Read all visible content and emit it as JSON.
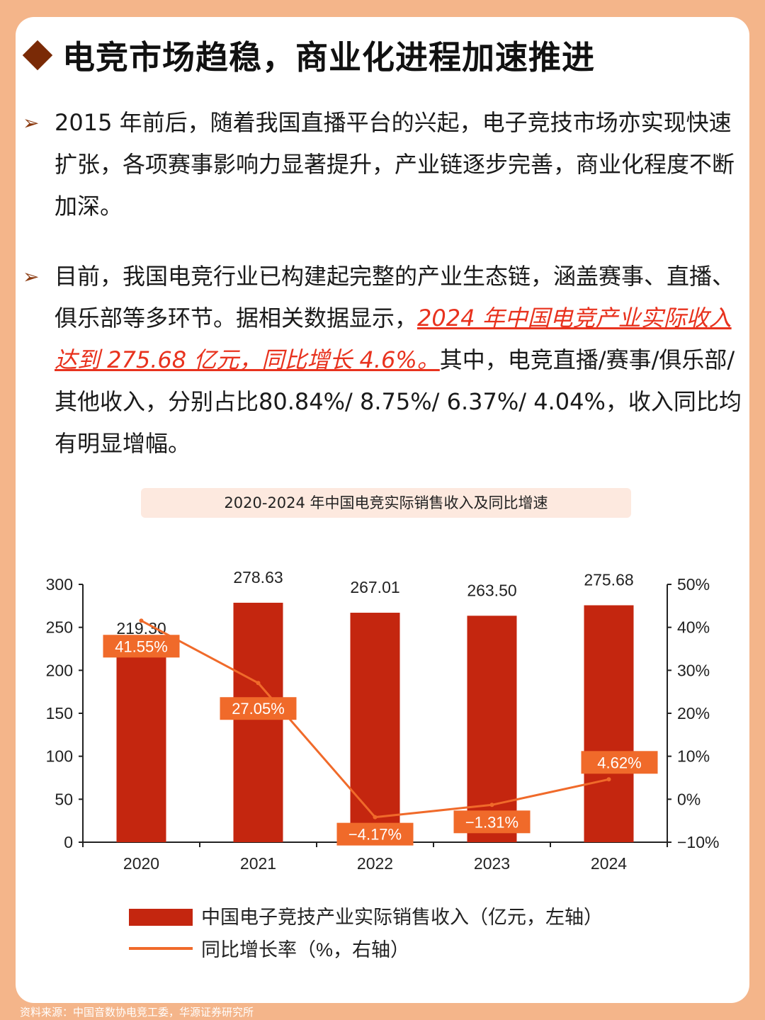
{
  "title": "电竞市场趋稳，商业化进程加速推进",
  "para1": "2015 年前后，随着我国直播平台的兴起，电子竞技市场亦实现快速扩张，各项赛事影响力显著提升，产业链逐步完善，商业化程度不断加深。",
  "para2": {
    "before": "目前，我国电竞行业已构建起完整的产业生态链，涵盖赛事、直播、俱乐部等多环节。据相关数据显示，",
    "highlight": "2024 年中国电竞产业实际收入达到 275.68 亿元，同比增长 4.6%。",
    "after": "其中，电竞直播/赛事/俱乐部/其他收入，分别占比80.84%/ 8.75%/ 6.37%/ 4.04%，收入同比均有明显增幅。"
  },
  "arrow_glyph": "➢",
  "chart_data": {
    "type": "bar",
    "title": "2020-2024 年中国电竞实际销售收入及同比增速",
    "categories": [
      "2020",
      "2021",
      "2022",
      "2023",
      "2024"
    ],
    "series": [
      {
        "name": "中国电子竞技产业实际销售收入（亿元，左轴）",
        "type": "bar",
        "axis": "left",
        "values": [
          219.3,
          278.63,
          267.01,
          263.5,
          275.68
        ],
        "labels": [
          "219.30",
          "278.63",
          "267.01",
          "263.50",
          "275.68"
        ]
      },
      {
        "name": "同比增长率（%，右轴）",
        "type": "line",
        "axis": "right",
        "values": [
          41.55,
          27.05,
          -4.17,
          -1.31,
          4.62
        ],
        "labels": [
          "41.55%",
          "27.05%",
          "−4.17%",
          "−1.31%",
          "4.62%"
        ]
      }
    ],
    "yleft": {
      "ylim": [
        0,
        300
      ],
      "ticks": [
        "0",
        "50",
        "100",
        "150",
        "200",
        "250",
        "300"
      ]
    },
    "yright": {
      "ylim": [
        -10,
        50
      ],
      "ticks": [
        "−10%",
        "0%",
        "10%",
        "20%",
        "30%",
        "40%",
        "50%"
      ]
    },
    "legend_position": "bottom",
    "colors": {
      "bar": "#c4260f",
      "line": "#f06a2a",
      "label_box": "#f06a2a"
    }
  },
  "source": "资料来源：中国音数协电竞工委，华源证券研究所"
}
